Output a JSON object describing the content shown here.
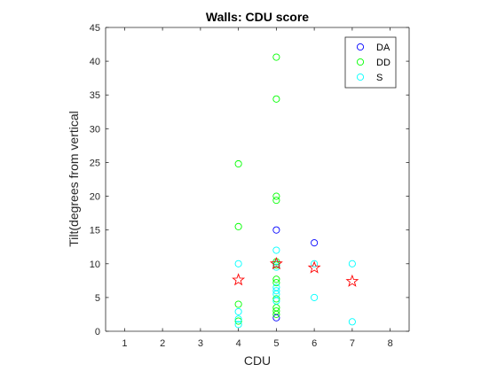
{
  "chart_data": {
    "type": "scatter",
    "title": "Walls: CDU score",
    "xlabel": "CDU",
    "ylabel": "Tilt(degrees from vertical",
    "xlim": [
      0.5,
      8.5
    ],
    "ylim": [
      0,
      45
    ],
    "xticks": [
      1,
      2,
      3,
      4,
      5,
      6,
      7,
      8
    ],
    "yticks": [
      0,
      5,
      10,
      15,
      20,
      25,
      30,
      35,
      40,
      45
    ],
    "grid": false,
    "legend_position": "top-right",
    "series": [
      {
        "name": "DA",
        "color": "#0000ff",
        "marker": "circle",
        "points": [
          [
            5,
            15.0
          ],
          [
            5,
            2.0
          ],
          [
            6,
            13.1
          ]
        ]
      },
      {
        "name": "DD",
        "color": "#00ff00",
        "marker": "circle",
        "points": [
          [
            4,
            24.8
          ],
          [
            4,
            15.5
          ],
          [
            4,
            4.0
          ],
          [
            4,
            1.5
          ],
          [
            5,
            40.6
          ],
          [
            5,
            34.4
          ],
          [
            5,
            20.0
          ],
          [
            5,
            19.4
          ],
          [
            5,
            10.3
          ],
          [
            5,
            9.8
          ],
          [
            5,
            7.7
          ],
          [
            5,
            7.2
          ],
          [
            5,
            4.8
          ],
          [
            5,
            3.5
          ],
          [
            5,
            3.0
          ],
          [
            5,
            2.5
          ]
        ]
      },
      {
        "name": "S",
        "color": "#00ffff",
        "marker": "circle",
        "points": [
          [
            4,
            10.0
          ],
          [
            4,
            2.9
          ],
          [
            4,
            1.8
          ],
          [
            4,
            1.0
          ],
          [
            5,
            12.0
          ],
          [
            5,
            10.0
          ],
          [
            5,
            9.5
          ],
          [
            5,
            6.5
          ],
          [
            5,
            6.0
          ],
          [
            5,
            5.5
          ],
          [
            5,
            4.5
          ],
          [
            6,
            10.0
          ],
          [
            6,
            5.0
          ],
          [
            7,
            10.0
          ],
          [
            7,
            1.4
          ]
        ]
      },
      {
        "color": "#ff0000",
        "marker": "star",
        "points": [
          [
            4,
            7.6
          ],
          [
            5,
            10.0
          ],
          [
            6,
            9.4
          ],
          [
            7,
            7.4
          ]
        ]
      }
    ]
  }
}
